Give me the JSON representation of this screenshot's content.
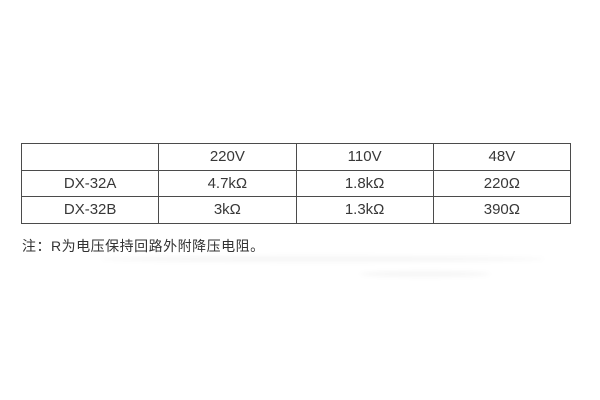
{
  "table": {
    "columns": [
      "",
      "220V",
      "110V",
      "48V"
    ],
    "rows": [
      {
        "model": "DX-32A",
        "values": [
          "4.7kΩ",
          "1.8kΩ",
          "220Ω"
        ]
      },
      {
        "model": "DX-32B",
        "values": [
          "3kΩ",
          "1.3kΩ",
          "390Ω"
        ]
      }
    ]
  },
  "note": "注：R为电压保持回路外附降压电阻。",
  "colors": {
    "border": "#4b4b4b",
    "text": "#383838",
    "background": "#ffffff"
  }
}
